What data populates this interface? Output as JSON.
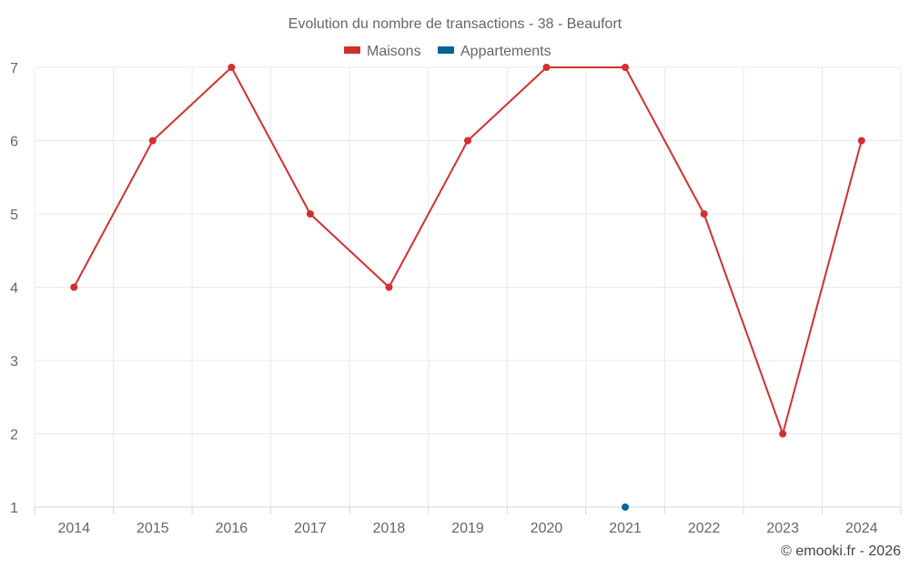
{
  "chart_data": {
    "type": "line",
    "title": "Evolution du nombre de transactions - 38 - Beaufort",
    "categories": [
      "2014",
      "2015",
      "2016",
      "2017",
      "2018",
      "2019",
      "2020",
      "2021",
      "2022",
      "2023",
      "2024"
    ],
    "series": [
      {
        "name": "Maisons",
        "color": "#d32f2f",
        "values": [
          4,
          6,
          7,
          5,
          4,
          6,
          7,
          7,
          5,
          2,
          6
        ]
      },
      {
        "name": "Appartements",
        "color": "#0d6199",
        "values": [
          null,
          null,
          null,
          null,
          null,
          null,
          null,
          1,
          null,
          null,
          null
        ]
      }
    ],
    "ylim": [
      1,
      7
    ],
    "yticks": [
      1,
      2,
      3,
      4,
      5,
      6,
      7
    ],
    "grid": true,
    "legend_position": "top-center"
  },
  "credit": "© emooki.fr - 2026"
}
